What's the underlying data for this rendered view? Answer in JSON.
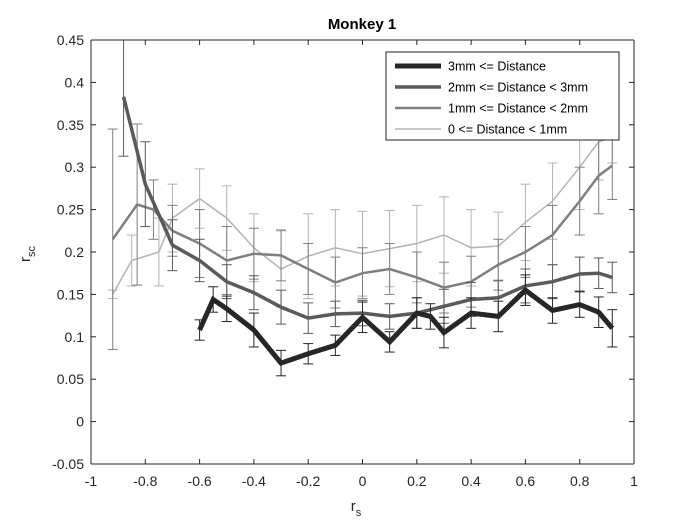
{
  "chart_data": {
    "type": "line",
    "title": "Monkey 1",
    "xlabel": "r",
    "xlabel_sub": "s",
    "ylabel": "r",
    "ylabel_sub": "sc",
    "xlim": [
      -1,
      1
    ],
    "ylim": [
      -0.05,
      0.45
    ],
    "x_ticks": [
      "-1",
      "-0.8",
      "-0.6",
      "-0.4",
      "-0.2",
      "0",
      "0.2",
      "0.4",
      "0.6",
      "0.8",
      "1"
    ],
    "y_ticks": [
      "-0.05",
      "0",
      "0.05",
      "0.1",
      "0.15",
      "0.2",
      "0.25",
      "0.3",
      "0.35",
      "0.4",
      "0.45"
    ],
    "grid": false,
    "legend_position": "top-right",
    "series": [
      {
        "name": "3mm <= Distance",
        "color": "#262626",
        "x": [
          -0.6,
          -0.55,
          -0.5,
          -0.4,
          -0.3,
          -0.2,
          -0.1,
          0.0,
          0.1,
          0.2,
          0.25,
          0.3,
          0.4,
          0.5,
          0.6,
          0.7,
          0.8,
          0.87,
          0.92
        ],
        "values": [
          0.108,
          0.144,
          0.133,
          0.108,
          0.069,
          0.08,
          0.09,
          0.123,
          0.094,
          0.128,
          0.124,
          0.105,
          0.128,
          0.124,
          0.155,
          0.131,
          0.138,
          0.129,
          0.11
        ],
        "err": [
          0.012,
          0.015,
          0.015,
          0.02,
          0.015,
          0.012,
          0.012,
          0.018,
          0.012,
          0.018,
          0.015,
          0.018,
          0.018,
          0.018,
          0.018,
          0.015,
          0.015,
          0.018,
          0.022
        ]
      },
      {
        "name": "2mm <= Distance < 3mm",
        "color": "#5a5a5a",
        "x": [
          -0.88,
          -0.8,
          -0.7,
          -0.6,
          -0.5,
          -0.4,
          -0.3,
          -0.2,
          -0.1,
          0.0,
          0.1,
          0.2,
          0.3,
          0.4,
          0.5,
          0.6,
          0.7,
          0.8,
          0.87,
          0.92
        ],
        "values": [
          0.383,
          0.28,
          0.208,
          0.19,
          0.165,
          0.152,
          0.135,
          0.122,
          0.127,
          0.128,
          0.124,
          0.128,
          0.136,
          0.144,
          0.146,
          0.16,
          0.165,
          0.174,
          0.175,
          0.17
        ],
        "err": [
          0.07,
          0.05,
          0.03,
          0.025,
          0.02,
          0.02,
          0.02,
          0.018,
          0.015,
          0.015,
          0.015,
          0.018,
          0.02,
          0.02,
          0.02,
          0.02,
          0.02,
          0.02,
          0.018,
          0.018
        ]
      },
      {
        "name": "1mm <= Distance < 2mm",
        "color": "#7f7f7f",
        "x": [
          -0.92,
          -0.83,
          -0.77,
          -0.7,
          -0.6,
          -0.5,
          -0.4,
          -0.3,
          -0.2,
          -0.1,
          0.0,
          0.1,
          0.2,
          0.3,
          0.4,
          0.5,
          0.6,
          0.7,
          0.8,
          0.87,
          0.92
        ],
        "values": [
          0.215,
          0.256,
          0.25,
          0.225,
          0.21,
          0.19,
          0.198,
          0.196,
          0.18,
          0.164,
          0.175,
          0.18,
          0.17,
          0.158,
          0.165,
          0.185,
          0.2,
          0.22,
          0.26,
          0.29,
          0.302
        ],
        "err": [
          0.13,
          0.095,
          0.035,
          0.03,
          0.04,
          0.04,
          0.03,
          0.03,
          0.03,
          0.03,
          0.03,
          0.03,
          0.03,
          0.03,
          0.03,
          0.03,
          0.03,
          0.035,
          0.04,
          0.045,
          0.04
        ]
      },
      {
        "name": "0 <= Distance < 1mm",
        "color": "#b3b3b3",
        "x": [
          -0.92,
          -0.85,
          -0.75,
          -0.7,
          -0.6,
          -0.5,
          -0.4,
          -0.3,
          -0.2,
          -0.1,
          0.0,
          0.1,
          0.2,
          0.3,
          0.4,
          0.5,
          0.6,
          0.7,
          0.8,
          0.87,
          0.92
        ],
        "values": [
          0.15,
          0.19,
          0.2,
          0.24,
          0.263,
          0.24,
          0.205,
          0.18,
          0.195,
          0.205,
          0.198,
          0.204,
          0.21,
          0.22,
          0.205,
          0.207,
          0.235,
          0.26,
          0.3,
          0.33,
          0.335
        ],
        "err": [
          0.005,
          0.03,
          0.04,
          0.04,
          0.035,
          0.038,
          0.04,
          0.045,
          0.05,
          0.045,
          0.05,
          0.045,
          0.045,
          0.045,
          0.045,
          0.04,
          0.045,
          0.045,
          0.05,
          0.045,
          0.03
        ]
      }
    ],
    "line_widths": [
      5,
      3.5,
      2.5,
      1.5
    ]
  }
}
